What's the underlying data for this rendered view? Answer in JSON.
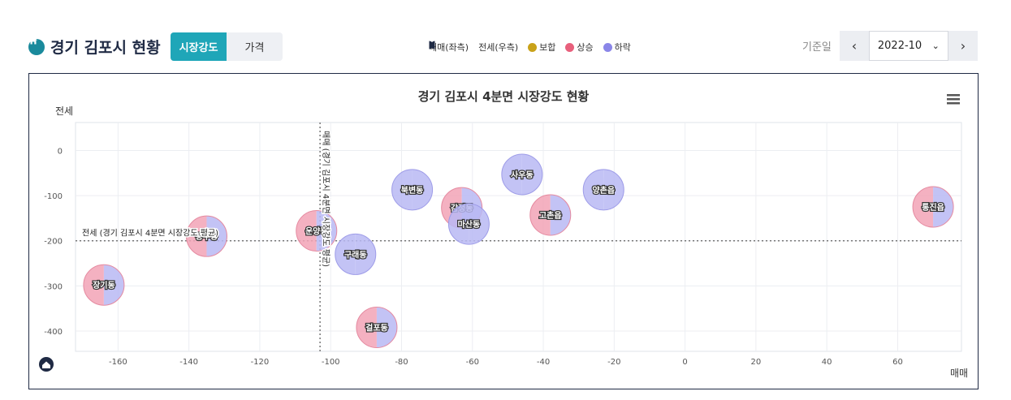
{
  "header": {
    "title": "경기 김포시 현황",
    "tabs": [
      {
        "label": "시장강도",
        "active": true
      },
      {
        "label": "가격",
        "active": false
      }
    ],
    "legend": [
      {
        "label": "매매(좌측)",
        "kind": "half-left",
        "color": "#1f2a44"
      },
      {
        "label": "전세(우측)",
        "kind": "half-right",
        "color": "#1f2a44"
      },
      {
        "label": "보합",
        "kind": "dot",
        "color": "#c9a21a"
      },
      {
        "label": "상승",
        "kind": "dot",
        "color": "#e8607c"
      },
      {
        "label": "하락",
        "kind": "dot",
        "color": "#8a86e8"
      }
    ],
    "date_label": "기준일",
    "date_value": "2022-10",
    "prev_icon": "chevron-left-icon",
    "next_icon": "chevron-right-icon"
  },
  "colors": {
    "rise": "#f2a3b6",
    "fall": "#b9b8f3",
    "rise_stroke": "#e58aa0",
    "fall_stroke": "#9e9ce8",
    "accent": "#1fa6b8"
  },
  "chart_data": {
    "type": "scatter",
    "title": "경기 김포시 4분면 시장강도 현황",
    "xlabel": "매매",
    "ylabel": "전세",
    "xlim": [
      -172,
      78
    ],
    "ylim": [
      -445,
      62
    ],
    "xticks": [
      -160,
      -140,
      -120,
      -100,
      -80,
      -60,
      -40,
      -20,
      0,
      20,
      40,
      60
    ],
    "yticks": [
      0,
      -100,
      -200,
      -300,
      -400
    ],
    "grid": true,
    "avg_x": -103,
    "avg_y": -200,
    "avg_x_label": "매매 (경기 김포시 4분면 시장강도 평균)",
    "avg_y_label": "전세 (경기 김포시 4분면 시장강도 평균)",
    "points": [
      {
        "name": "통진읍",
        "x": 70,
        "y": -125,
        "sale": "상승",
        "jeonse": "하락"
      },
      {
        "name": "양촌읍",
        "x": -23,
        "y": -87,
        "sale": "하락",
        "jeonse": "하락"
      },
      {
        "name": "고촌읍",
        "x": -38,
        "y": -143,
        "sale": "상승",
        "jeonse": "하락"
      },
      {
        "name": "사우동",
        "x": -46,
        "y": -53,
        "sale": "하락",
        "jeonse": "하락"
      },
      {
        "name": "감정동",
        "x": -63,
        "y": -127,
        "sale": "상승",
        "jeonse": "하락"
      },
      {
        "name": "마산동",
        "x": -61,
        "y": -163,
        "sale": "하락",
        "jeonse": "하락"
      },
      {
        "name": "북변동",
        "x": -77,
        "y": -87,
        "sale": "하락",
        "jeonse": "하락"
      },
      {
        "name": "구래동",
        "x": -93,
        "y": -230,
        "sale": "하락",
        "jeonse": "하락"
      },
      {
        "name": "걸포동",
        "x": -87,
        "y": -392,
        "sale": "상승",
        "jeonse": "하락"
      },
      {
        "name": "운양동",
        "x": -104,
        "y": -178,
        "sale": "상승",
        "jeonse": "하락"
      },
      {
        "name": "풍무동",
        "x": -135,
        "y": -190,
        "sale": "상승",
        "jeonse": "하락"
      },
      {
        "name": "장기동",
        "x": -164,
        "y": -298,
        "sale": "상승",
        "jeonse": "하락"
      }
    ]
  }
}
